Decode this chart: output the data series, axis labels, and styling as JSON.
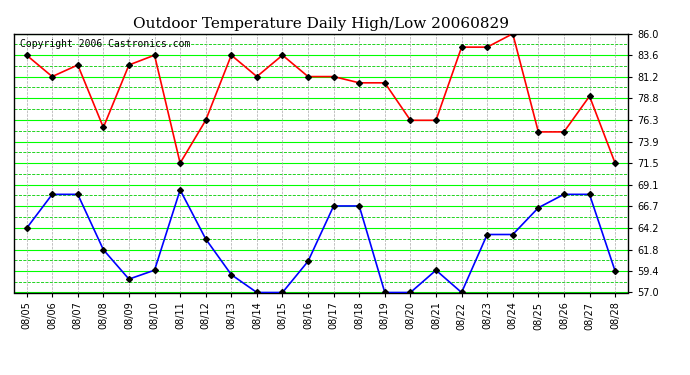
{
  "title": "Outdoor Temperature Daily High/Low 20060829",
  "copyright": "Copyright 2006 Castronics.com",
  "dates": [
    "08/05",
    "08/06",
    "08/07",
    "08/08",
    "08/09",
    "08/10",
    "08/11",
    "08/12",
    "08/13",
    "08/14",
    "08/15",
    "08/16",
    "08/17",
    "08/18",
    "08/19",
    "08/20",
    "08/21",
    "08/22",
    "08/23",
    "08/24",
    "08/25",
    "08/26",
    "08/27",
    "08/28"
  ],
  "high_temps": [
    83.6,
    81.2,
    82.5,
    75.5,
    82.5,
    83.6,
    71.5,
    76.3,
    83.6,
    81.2,
    83.6,
    81.2,
    81.2,
    80.5,
    80.5,
    76.3,
    76.3,
    84.5,
    84.5,
    86.0,
    75.0,
    75.0,
    79.0,
    71.5
  ],
  "low_temps": [
    64.2,
    68.0,
    68.0,
    61.8,
    58.5,
    59.5,
    68.5,
    63.0,
    59.0,
    57.0,
    57.0,
    60.5,
    66.7,
    66.7,
    57.0,
    57.0,
    59.5,
    57.0,
    63.5,
    63.5,
    66.5,
    68.0,
    68.0,
    59.4
  ],
  "ylim_min": 57.0,
  "ylim_max": 86.0,
  "yticks": [
    57.0,
    59.4,
    61.8,
    64.2,
    66.7,
    69.1,
    71.5,
    73.9,
    76.3,
    78.8,
    81.2,
    83.6,
    86.0
  ],
  "bg_color": "#ffffff",
  "plot_bg_color": "#ffffff",
  "high_color": "#ff0000",
  "low_color": "#0000ff",
  "grid_solid_color": "#00ff00",
  "grid_dash_color": "#00cc00",
  "grid_vert_color": "#aaaaaa",
  "title_fontsize": 11,
  "copyright_fontsize": 7,
  "marker": "D",
  "linewidth": 1.2,
  "markersize": 3
}
